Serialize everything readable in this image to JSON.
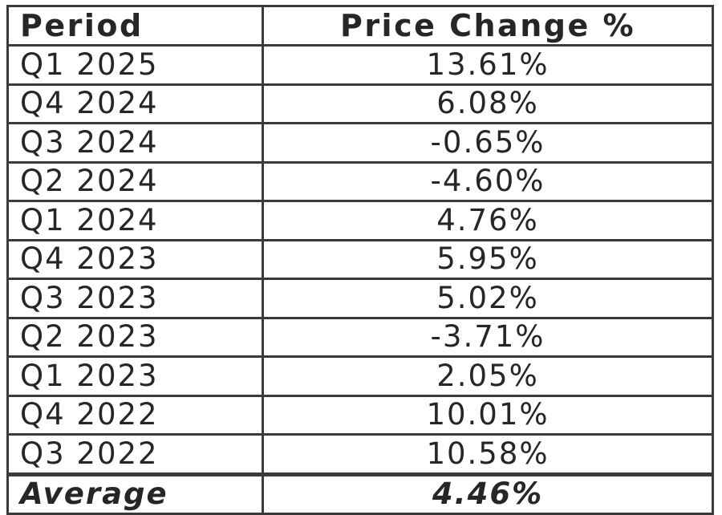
{
  "chart_data": {
    "type": "table",
    "columns": [
      "Period",
      "Price Change %"
    ],
    "rows": [
      {
        "period": "Q1 2025",
        "change": "13.61%"
      },
      {
        "period": "Q4 2024",
        "change": "6.08%"
      },
      {
        "period": "Q3 2024",
        "change": "-0.65%"
      },
      {
        "period": "Q2 2024",
        "change": "-4.60%"
      },
      {
        "period": "Q1 2024",
        "change": "4.76%"
      },
      {
        "period": "Q4 2023",
        "change": "5.95%"
      },
      {
        "period": "Q3 2023",
        "change": "5.02%"
      },
      {
        "period": "Q2 2023",
        "change": "-3.71%"
      },
      {
        "period": "Q1 2023",
        "change": "2.05%"
      },
      {
        "period": "Q4 2022",
        "change": "10.01%"
      },
      {
        "period": "Q3 2022",
        "change": "10.58%"
      }
    ],
    "summary": {
      "label": "Average",
      "value": "4.46%"
    }
  },
  "colors": {
    "text": "#262626",
    "border": "#3a3a3a",
    "background": "#ffffff"
  }
}
